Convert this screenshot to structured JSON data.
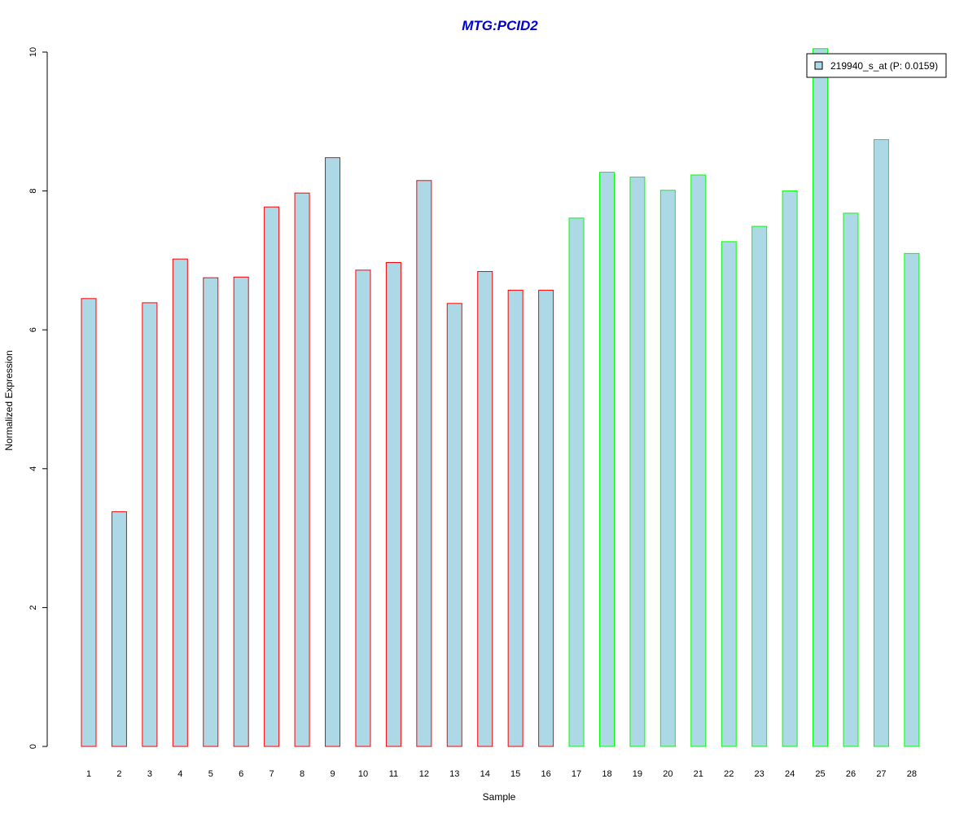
{
  "chart_data": {
    "type": "bar",
    "title": "MTG:PCID2",
    "xlabel": "Sample",
    "ylabel": "Normalized Expression",
    "ylim": [
      0,
      10
    ],
    "yticks": [
      "0",
      "2",
      "4",
      "6",
      "8",
      "10"
    ],
    "categories": [
      "1",
      "2",
      "3",
      "4",
      "5",
      "6",
      "7",
      "8",
      "9",
      "10",
      "11",
      "12",
      "13",
      "14",
      "15",
      "16",
      "17",
      "18",
      "19",
      "20",
      "21",
      "22",
      "23",
      "24",
      "25",
      "26",
      "27",
      "28"
    ],
    "series": [
      {
        "name": "219940_s_at (P: 0.0159)",
        "values": [
          6.45,
          3.38,
          6.39,
          7.02,
          6.75,
          6.76,
          7.77,
          7.97,
          8.48,
          6.86,
          6.97,
          8.15,
          6.38,
          6.84,
          6.57,
          6.57,
          7.61,
          8.27,
          8.2,
          8.01,
          8.23,
          7.27,
          7.49,
          8.0,
          10.05,
          7.68,
          8.74,
          7.1
        ]
      }
    ],
    "groups": [
      1,
      1,
      1,
      1,
      1,
      1,
      1,
      1,
      1,
      1,
      1,
      1,
      1,
      1,
      1,
      1,
      2,
      2,
      2,
      2,
      2,
      2,
      2,
      2,
      2,
      2,
      2,
      2
    ],
    "grid": false,
    "legend_position": "top-right",
    "colors": {
      "bar_fill": "#ADD8E6",
      "group1_border": "#FF0000",
      "group2_border": "#00FF00",
      "title": "#0000CD"
    }
  }
}
